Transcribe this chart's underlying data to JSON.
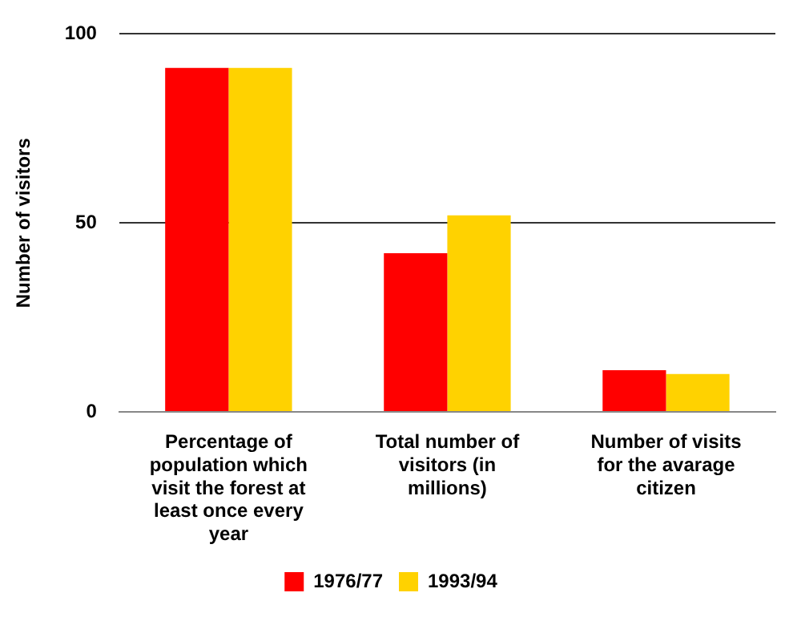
{
  "chart_data": {
    "type": "bar",
    "ylabel": "Number of visitors",
    "categories": [
      "Percentage of population which visit the forest at least once every year",
      "Total number of visitors (in millions)",
      "Number of visits for the avarage citizen"
    ],
    "series": [
      {
        "name": "1976/77",
        "color": "#ff0000",
        "values": [
          91,
          42,
          11
        ]
      },
      {
        "name": "1993/94",
        "color": "#ffd200",
        "values": [
          91,
          52,
          10
        ]
      }
    ],
    "ylim": [
      0,
      100
    ],
    "yticks": [
      0,
      50,
      100
    ],
    "grid": "y",
    "legend": "bottom"
  }
}
